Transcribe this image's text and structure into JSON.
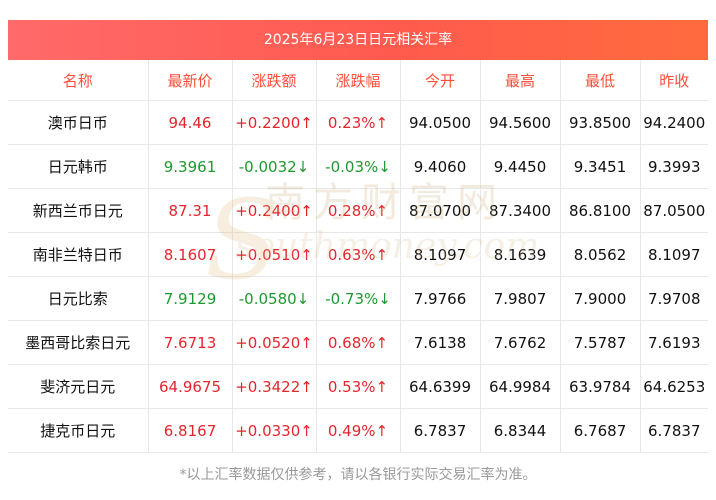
{
  "title": "2025年6月23日日元相关汇率",
  "columns": [
    "名称",
    "最新价",
    "涨跌额",
    "涨跌幅",
    "今开",
    "最高",
    "最低",
    "昨收"
  ],
  "rows": [
    {
      "name": "澳币日币",
      "price": "94.46",
      "change": "+0.2200↑",
      "pct": "0.23%↑",
      "open": "94.0500",
      "high": "94.5600",
      "low": "93.8500",
      "prev": "94.2400",
      "dir": "up"
    },
    {
      "name": "日元韩币",
      "price": "9.3961",
      "change": "-0.0032↓",
      "pct": "-0.03%↓",
      "open": "9.4060",
      "high": "9.4450",
      "low": "9.3451",
      "prev": "9.3993",
      "dir": "down"
    },
    {
      "name": "新西兰币日元",
      "price": "87.31",
      "change": "+0.2400↑",
      "pct": "0.28%↑",
      "open": "87.0700",
      "high": "87.3400",
      "low": "86.8100",
      "prev": "87.0500",
      "dir": "up"
    },
    {
      "name": "南非兰特日币",
      "price": "8.1607",
      "change": "+0.0510↑",
      "pct": "0.63%↑",
      "open": "8.1097",
      "high": "8.1639",
      "low": "8.0562",
      "prev": "8.1097",
      "dir": "up"
    },
    {
      "name": "日元比索",
      "price": "7.9129",
      "change": "-0.0580↓",
      "pct": "-0.73%↓",
      "open": "7.9766",
      "high": "7.9807",
      "low": "7.9000",
      "prev": "7.9708",
      "dir": "down"
    },
    {
      "name": "墨西哥比索日元",
      "price": "7.6713",
      "change": "+0.0520↑",
      "pct": "0.68%↑",
      "open": "7.6138",
      "high": "7.6762",
      "low": "7.5787",
      "prev": "7.6193",
      "dir": "up"
    },
    {
      "name": "斐济元日元",
      "price": "64.9675",
      "change": "+0.3422↑",
      "pct": "0.53%↑",
      "open": "64.6399",
      "high": "64.9984",
      "low": "63.9784",
      "prev": "64.6253",
      "dir": "up"
    },
    {
      "name": "捷克币日元",
      "price": "6.8167",
      "change": "+0.0330↑",
      "pct": "0.49%↑",
      "open": "6.7837",
      "high": "6.8344",
      "low": "6.7687",
      "prev": "6.7837",
      "dir": "up"
    }
  ],
  "watermark": {
    "cn": "南方财富网",
    "en": "southmoney.com",
    "s": "S"
  },
  "footer": "*以上汇率数据仅供参考，请以各银行实际交易汇率为准。",
  "colors": {
    "up": "#e3262b",
    "down": "#1c9a2f",
    "header_text": "#ff4d3a",
    "title_bg": "#ff5a4e"
  }
}
